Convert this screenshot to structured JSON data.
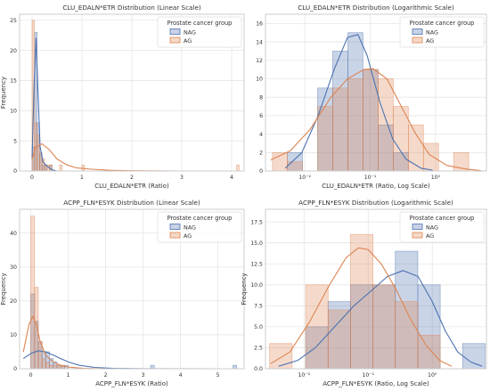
{
  "colors": {
    "nag": "#4c72b0",
    "ag": "#dd8452",
    "nag_fill": "#c8d1e6",
    "ag_fill": "#f6d8c6",
    "overlap": "#c2a3a0",
    "grid": "#e6e6e6",
    "axes": "#cccccc",
    "text": "#333333"
  },
  "legend_labels": {
    "title": "Prostate cancer group",
    "nag": "NAG",
    "ag": "AG"
  },
  "chart_data": [
    {
      "type": "histogram",
      "title": "CLU_EDALN*ETR Distribution (Linear Scale)",
      "xlabel": "CLU_EDALN*ETR (Ratio)",
      "ylabel": "Frequency",
      "xscale": "linear",
      "xlim": [
        -0.25,
        4.25
      ],
      "ylim": [
        0,
        26
      ],
      "xticks": [
        0,
        1,
        2,
        3,
        4
      ],
      "yticks": [
        0,
        5,
        10,
        15,
        20,
        25
      ],
      "legend": "top-right",
      "grid": true,
      "series": [
        {
          "name": "NAG",
          "bins": [
            [
              0.0,
              0.05,
              4
            ],
            [
              0.05,
              0.1,
              23
            ],
            [
              0.1,
              0.15,
              8
            ],
            [
              0.15,
              0.2,
              3
            ],
            [
              0.2,
              0.25,
              1
            ],
            [
              0.25,
              0.3,
              1
            ],
            [
              0.3,
              0.35,
              0
            ],
            [
              0.35,
              0.4,
              1
            ]
          ],
          "kde": [
            [
              0.0,
              2
            ],
            [
              0.04,
              14
            ],
            [
              0.08,
              22
            ],
            [
              0.12,
              13
            ],
            [
              0.16,
              4
            ],
            [
              0.22,
              1.5
            ],
            [
              0.3,
              0.8
            ],
            [
              0.4,
              0.2
            ],
            [
              0.5,
              0
            ]
          ]
        },
        {
          "name": "AG",
          "bins": [
            [
              0.0,
              0.05,
              25
            ],
            [
              0.05,
              0.1,
              8
            ],
            [
              0.1,
              0.15,
              6
            ],
            [
              0.15,
              0.2,
              3
            ],
            [
              0.2,
              0.25,
              2
            ],
            [
              0.25,
              0.3,
              1
            ],
            [
              0.3,
              0.35,
              1
            ],
            [
              0.35,
              0.4,
              1
            ],
            [
              0.55,
              0.6,
              1
            ],
            [
              1.0,
              1.05,
              1
            ],
            [
              4.1,
              4.15,
              1
            ]
          ],
          "kde": [
            [
              0.0,
              2
            ],
            [
              0.08,
              4
            ],
            [
              0.2,
              4.5
            ],
            [
              0.35,
              3.5
            ],
            [
              0.5,
              2
            ],
            [
              0.7,
              1
            ],
            [
              0.9,
              0.5
            ],
            [
              1.2,
              0.3
            ],
            [
              1.6,
              0.1
            ],
            [
              2.0,
              0.05
            ],
            [
              3.0,
              0
            ],
            [
              4.2,
              0
            ]
          ]
        }
      ]
    },
    {
      "type": "histogram",
      "title": "CLU_EDALN*ETR Distribution (Logarithmic Scale)",
      "xlabel": "CLU_EDALN*ETR (Ratio, Log Scale)",
      "ylabel": "",
      "xscale": "log",
      "xlim": [
        0.0025,
        6
      ],
      "ylim": [
        0,
        17
      ],
      "xticks": [
        0.01,
        0.1,
        1
      ],
      "xticklabels": [
        "10⁻²",
        "10⁻¹",
        "10⁰"
      ],
      "yticks": [
        0,
        2,
        4,
        6,
        8,
        10,
        12,
        14,
        16
      ],
      "legend": "top-right",
      "grid": true,
      "series": [
        {
          "name": "NAG",
          "bins": [
            [
              0.0054,
              0.0092,
              2
            ],
            [
              0.0157,
              0.0267,
              9
            ],
            [
              0.0267,
              0.0455,
              13
            ],
            [
              0.0455,
              0.0775,
              15
            ],
            [
              0.0775,
              0.132,
              11
            ],
            [
              0.132,
              0.225,
              5
            ],
            [
              0.225,
              0.383,
              2
            ]
          ],
          "kde": [
            [
              0.005,
              0.3
            ],
            [
              0.009,
              2
            ],
            [
              0.016,
              6
            ],
            [
              0.028,
              11
            ],
            [
              0.045,
              14.5
            ],
            [
              0.065,
              14.8
            ],
            [
              0.09,
              12.5
            ],
            [
              0.14,
              7.5
            ],
            [
              0.22,
              3.5
            ],
            [
              0.35,
              1.3
            ],
            [
              0.6,
              0.3
            ],
            [
              0.9,
              0.1
            ]
          ]
        },
        {
          "name": "AG",
          "bins": [
            [
              0.0032,
              0.0054,
              2
            ],
            [
              0.0054,
              0.0092,
              1
            ],
            [
              0.0157,
              0.0267,
              7
            ],
            [
              0.0267,
              0.0455,
              9
            ],
            [
              0.0455,
              0.0775,
              10
            ],
            [
              0.0775,
              0.132,
              11
            ],
            [
              0.132,
              0.225,
              10
            ],
            [
              0.225,
              0.383,
              7
            ],
            [
              0.383,
              0.652,
              5
            ],
            [
              0.652,
              1.11,
              3
            ],
            [
              1.89,
              3.21,
              2
            ]
          ],
          "kde": [
            [
              0.003,
              1.2
            ],
            [
              0.006,
              2.2
            ],
            [
              0.012,
              4.5
            ],
            [
              0.025,
              8
            ],
            [
              0.045,
              10
            ],
            [
              0.08,
              11
            ],
            [
              0.11,
              11.1
            ],
            [
              0.18,
              10
            ],
            [
              0.3,
              7
            ],
            [
              0.5,
              4
            ],
            [
              0.8,
              1.8
            ],
            [
              1.5,
              0.6
            ],
            [
              3,
              0.2
            ],
            [
              5,
              0.05
            ]
          ]
        }
      ]
    },
    {
      "type": "histogram",
      "title": "ACPP_FLN*ESYK Distribution (Linear Scale)",
      "xlabel": "ACPP_FLN*ESYK (Ratio)",
      "ylabel": "Frequency",
      "xscale": "linear",
      "xlim": [
        -0.3,
        5.7
      ],
      "ylim": [
        0,
        47
      ],
      "xticks": [
        0,
        1,
        2,
        3,
        4,
        5
      ],
      "yticks": [
        0,
        10,
        20,
        30,
        40
      ],
      "legend": "top-right",
      "grid": true,
      "series": [
        {
          "name": "NAG",
          "bins": [
            [
              0.0,
              0.1,
              22
            ],
            [
              0.1,
              0.2,
              14
            ],
            [
              0.2,
              0.3,
              8
            ],
            [
              0.3,
              0.4,
              5
            ],
            [
              0.4,
              0.5,
              5
            ],
            [
              0.5,
              0.6,
              3
            ],
            [
              0.6,
              0.7,
              2
            ],
            [
              0.7,
              0.8,
              1
            ],
            [
              0.8,
              0.9,
              1
            ],
            [
              0.9,
              1.0,
              1
            ],
            [
              3.2,
              3.3,
              1
            ],
            [
              5.4,
              5.5,
              1
            ]
          ],
          "kde": [
            [
              -0.2,
              3
            ],
            [
              0.0,
              4.5
            ],
            [
              0.2,
              5.3
            ],
            [
              0.4,
              5
            ],
            [
              0.6,
              4
            ],
            [
              0.8,
              3
            ],
            [
              1.0,
              2
            ],
            [
              1.3,
              1
            ],
            [
              1.7,
              0.4
            ],
            [
              2.2,
              0.1
            ],
            [
              3.0,
              0.03
            ],
            [
              5.5,
              0
            ]
          ]
        },
        {
          "name": "AG",
          "bins": [
            [
              0.0,
              0.1,
              45
            ],
            [
              0.1,
              0.2,
              24
            ],
            [
              0.2,
              0.3,
              8
            ],
            [
              0.3,
              0.4,
              3
            ],
            [
              0.4,
              0.5,
              2
            ],
            [
              0.5,
              0.6,
              1
            ],
            [
              0.6,
              0.7,
              1
            ],
            [
              0.7,
              0.8,
              1
            ],
            [
              0.8,
              0.9,
              1
            ]
          ],
          "kde": [
            [
              -0.2,
              5
            ],
            [
              -0.05,
              13
            ],
            [
              0.05,
              15.5
            ],
            [
              0.15,
              13
            ],
            [
              0.25,
              8
            ],
            [
              0.4,
              4
            ],
            [
              0.6,
              2
            ],
            [
              0.8,
              1
            ],
            [
              1.0,
              0.5
            ],
            [
              1.4,
              0.1
            ],
            [
              2.0,
              0
            ]
          ]
        }
      ]
    },
    {
      "type": "histogram",
      "title": "ACPP_FLN*ESYK Distribution (Logarithmic Scale)",
      "xlabel": "ACPP_FLN*ESYK (Ratio, Log Scale)",
      "ylabel": "Frequency",
      "xscale": "log",
      "xlim": [
        0.0025,
        7
      ],
      "ylim": [
        0,
        19
      ],
      "xticks": [
        0.01,
        0.1,
        1
      ],
      "xticklabels": [
        "10⁻²",
        "10⁻¹",
        "10⁰"
      ],
      "yticks": [
        0,
        2.5,
        5.0,
        7.5,
        10.0,
        12.5,
        15.0,
        17.5
      ],
      "yticklabels": [
        "0.0",
        "2.5",
        "5.0",
        "7.5",
        "10.0",
        "12.5",
        "15.0",
        "17.5"
      ],
      "legend": "top-right",
      "grid": true,
      "series": [
        {
          "name": "NAG",
          "bins": [
            [
              0.0106,
              0.0237,
              5
            ],
            [
              0.0237,
              0.0531,
              8
            ],
            [
              0.0531,
              0.119,
              10
            ],
            [
              0.119,
              0.265,
              10
            ],
            [
              0.265,
              0.595,
              14
            ],
            [
              0.595,
              1.33,
              10
            ],
            [
              1.33,
              2.98,
              0
            ],
            [
              2.98,
              6.66,
              3
            ]
          ],
          "kde": [
            [
              0.004,
              0.3
            ],
            [
              0.008,
              1
            ],
            [
              0.015,
              2.5
            ],
            [
              0.03,
              5
            ],
            [
              0.06,
              7.5
            ],
            [
              0.12,
              9.5
            ],
            [
              0.2,
              11
            ],
            [
              0.35,
              11.7
            ],
            [
              0.6,
              11
            ],
            [
              1.0,
              8
            ],
            [
              1.6,
              4.5
            ],
            [
              2.5,
              2
            ],
            [
              4,
              0.8
            ],
            [
              6,
              0.3
            ]
          ]
        },
        {
          "name": "AG",
          "bins": [
            [
              0.0029,
              0.0065,
              3
            ],
            [
              0.0106,
              0.0237,
              10
            ],
            [
              0.0237,
              0.0531,
              7
            ],
            [
              0.0531,
              0.119,
              16
            ],
            [
              0.119,
              0.265,
              10
            ],
            [
              0.265,
              0.595,
              8
            ],
            [
              0.595,
              1.33,
              4
            ]
          ],
          "kde": [
            [
              0.003,
              0.6
            ],
            [
              0.006,
              2
            ],
            [
              0.012,
              5.5
            ],
            [
              0.025,
              10
            ],
            [
              0.045,
              13.2
            ],
            [
              0.07,
              14.4
            ],
            [
              0.1,
              14.2
            ],
            [
              0.16,
              12.5
            ],
            [
              0.27,
              9.5
            ],
            [
              0.45,
              6
            ],
            [
              0.8,
              2.8
            ],
            [
              1.3,
              1
            ],
            [
              2,
              0.3
            ]
          ]
        }
      ]
    }
  ]
}
